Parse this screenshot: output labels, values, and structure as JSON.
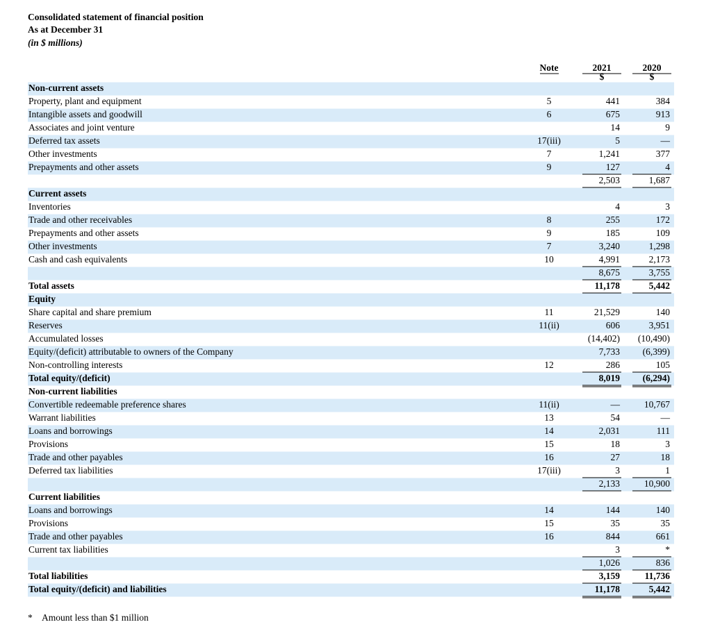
{
  "header": {
    "title": "Consolidated statement of financial position",
    "subtitle": "As at December 31",
    "units": "(in $ millions)"
  },
  "table": {
    "columns": [
      "Note",
      "2021",
      "2020"
    ],
    "currency": [
      "$",
      "$"
    ],
    "rows": [
      [
        "Non-current assets"
      ],
      [
        "Property, plant and equipment",
        "5",
        "441",
        "384"
      ],
      [
        "Intangible assets and goodwill",
        "6",
        "675",
        "913"
      ],
      [
        "Associates and joint venture",
        null,
        "14",
        "9"
      ],
      [
        "Deferred tax assets",
        "17(iii)",
        "5",
        "—"
      ],
      [
        "Other investments",
        "7",
        "1,241",
        "377"
      ],
      [
        "Prepayments and other assets",
        "9",
        "127",
        "4"
      ],
      [
        null,
        null,
        "2,503",
        "1,687"
      ],
      [
        "Current assets"
      ],
      [
        "Inventories",
        null,
        "4",
        "3"
      ],
      [
        "Trade and other receivables",
        "8",
        "255",
        "172"
      ],
      [
        "Prepayments and other assets",
        "9",
        "185",
        "109"
      ],
      [
        "Other investments",
        "7",
        "3,240",
        "1,298"
      ],
      [
        "Cash and cash equivalents",
        "10",
        "4,991",
        "2,173"
      ],
      [
        null,
        null,
        "8,675",
        "3,755"
      ],
      [
        "Total assets",
        null,
        "11,178",
        "5,442"
      ],
      [
        "Equity"
      ],
      [
        "Share capital and share premium",
        "11",
        "21,529",
        "140"
      ],
      [
        "Reserves",
        "11(ii)",
        "606",
        "3,951"
      ],
      [
        "Accumulated losses",
        null,
        "(14,402)",
        "(10,490)"
      ],
      [
        "Equity/(deficit) attributable to owners of the Company",
        null,
        "7,733",
        "(6,399)"
      ],
      [
        "Non-controlling interests",
        "12",
        "286",
        "105"
      ],
      [
        "Total equity/(deficit)",
        null,
        "8,019",
        "(6,294)"
      ],
      [
        "Non-current liabilities"
      ],
      [
        "Convertible redeemable preference shares",
        "11(ii)",
        "—",
        "10,767"
      ],
      [
        "Warrant liabilities",
        "13",
        "54",
        "—"
      ],
      [
        "Loans and borrowings",
        "14",
        "2,031",
        "111"
      ],
      [
        "Provisions",
        "15",
        "18",
        "3"
      ],
      [
        "Trade and other payables",
        "16",
        "27",
        "18"
      ],
      [
        "Deferred tax liabilities",
        "17(iii)",
        "3",
        "1"
      ],
      [
        null,
        null,
        "2,133",
        "10,900"
      ],
      [
        "Current liabilities"
      ],
      [
        "Loans and borrowings",
        "14",
        "144",
        "140"
      ],
      [
        "Provisions",
        "15",
        "35",
        "35"
      ],
      [
        "Trade and other payables",
        "16",
        "844",
        "661"
      ],
      [
        "Current tax liabilities",
        null,
        "3",
        "*"
      ],
      [
        null,
        null,
        "1,026",
        "836"
      ],
      [
        "Total liabilities",
        null,
        "3,159",
        "11,736"
      ],
      [
        "Total equity/(deficit) and liabilities",
        null,
        "11,178",
        "5,442"
      ]
    ]
  },
  "footnote": {
    "marker": "*",
    "text": "Amount less than $1 million"
  }
}
